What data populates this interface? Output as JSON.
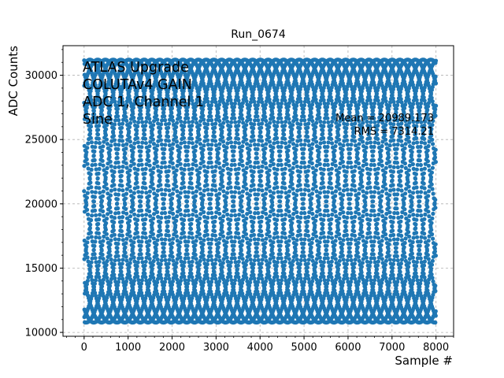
{
  "chart_data": {
    "type": "scatter",
    "title": "Run_0674",
    "xlabel": "Sample #",
    "ylabel": "ADC Counts",
    "xlim": [
      -480,
      8400
    ],
    "ylim": [
      9700,
      32300
    ],
    "xticks": [
      0,
      1000,
      2000,
      3000,
      4000,
      5000,
      6000,
      7000,
      8000
    ],
    "yticks": [
      10000,
      15000,
      20000,
      25000,
      30000
    ],
    "grid": true,
    "grid_style": "dashed",
    "marker_color": "#1f77b4",
    "series": [
      {
        "signal": "sine",
        "x_range": [
          0,
          7999
        ],
        "n_points": 8000,
        "min": 10770,
        "max": 31210,
        "mean": 20989.173,
        "rms": 7314.21
      }
    ],
    "annotations": {
      "upper_left": [
        "ATLAS Upgrade",
        "COLUTAv4 GAIN",
        "ADC 1, Channel 1",
        "Sine"
      ],
      "right": [
        "Mean = 20989.173",
        "RMS = 7314.21"
      ]
    }
  }
}
